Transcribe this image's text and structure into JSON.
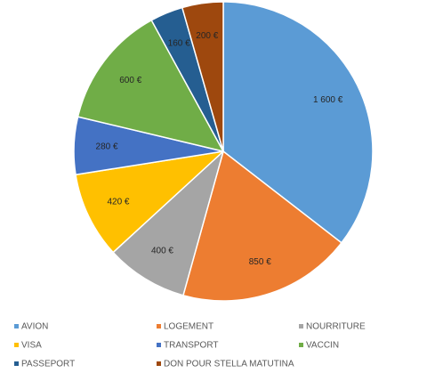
{
  "chart_data": {
    "type": "pie",
    "title": "",
    "categories": [
      "AVION",
      "LOGEMENT",
      "NOURRITURE",
      "VISA",
      "TRANSPORT",
      "VACCIN",
      "PASSEPORT",
      "DON POUR STELLA MATUTINA"
    ],
    "values": [
      1600,
      850,
      400,
      420,
      280,
      600,
      160,
      200
    ],
    "data_labels": [
      "1 600 €",
      "850 €",
      "400 €",
      "420 €",
      "280 €",
      "600 €",
      "160 €",
      "200 €"
    ],
    "colors": [
      "#5b9bd5",
      "#ed7d31",
      "#a5a5a5",
      "#ffc000",
      "#4472c4",
      "#70ad47",
      "#255e91",
      "#9e480e"
    ],
    "start_angle_deg": 0,
    "direction": "clockwise",
    "legend_position": "bottom",
    "grid": false
  }
}
